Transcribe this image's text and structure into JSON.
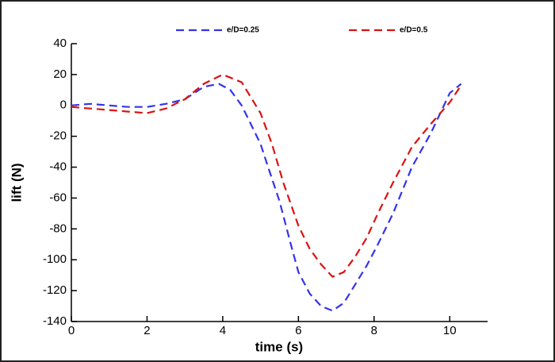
{
  "chart_data": {
    "type": "line",
    "xlabel": "time (s)",
    "ylabel": "lift (N)",
    "xlim": [
      0,
      11
    ],
    "xticks": [
      0,
      2,
      4,
      6,
      8,
      10
    ],
    "ylim": [
      -140,
      40
    ],
    "yticks": [
      -140,
      -120,
      -100,
      -80,
      -60,
      -40,
      -20,
      0,
      20,
      40
    ],
    "series": [
      {
        "name": "e/D=0.25",
        "color": "#3333ee",
        "x": [
          0,
          0.5,
          1,
          1.5,
          2,
          2.5,
          3,
          3.5,
          3.9,
          4.2,
          4.5,
          4.8,
          5,
          5.2,
          5.5,
          5.8,
          6,
          6.3,
          6.6,
          6.9,
          7.2,
          7.5,
          7.8,
          8.1,
          8.5,
          9,
          9.5,
          10,
          10.3
        ],
        "values": [
          0,
          1,
          0,
          -1,
          -1,
          1,
          4,
          12,
          14,
          10,
          0,
          -15,
          -25,
          -40,
          -62,
          -90,
          -108,
          -122,
          -130,
          -133,
          -128,
          -116,
          -104,
          -90,
          -70,
          -40,
          -18,
          8,
          14
        ]
      },
      {
        "name": "e/D=0.5",
        "color": "#dd1111",
        "x": [
          0,
          0.5,
          1,
          1.5,
          2,
          2.5,
          3,
          3.5,
          4,
          4.5,
          5,
          5.3,
          5.6,
          6,
          6.3,
          6.6,
          6.9,
          7.2,
          7.5,
          7.8,
          8.1,
          8.5,
          9,
          9.5,
          10,
          10.3
        ],
        "values": [
          -1,
          -2,
          -3,
          -4,
          -5,
          -2,
          4,
          14,
          20,
          15,
          -5,
          -25,
          -50,
          -78,
          -93,
          -103,
          -111,
          -108,
          -98,
          -86,
          -70,
          -50,
          -27,
          -12,
          2,
          13
        ]
      }
    ]
  }
}
